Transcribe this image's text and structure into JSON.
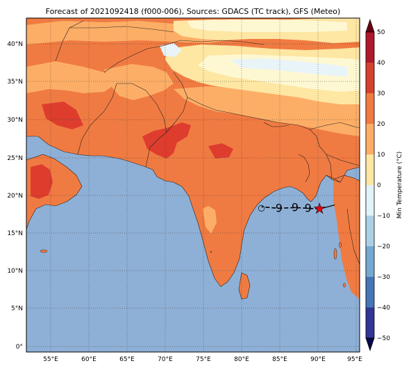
{
  "map": {
    "title": "Forecast of 2021092418 (f000-006), Sources: GDACS (TC track), GFS (Meteo)",
    "lon_ticks": [
      "55°E",
      "60°E",
      "65°E",
      "70°E",
      "75°E",
      "80°E",
      "85°E",
      "90°E",
      "95°E"
    ],
    "lat_ticks": [
      "0°",
      "5°N",
      "10°N",
      "15°N",
      "20°N",
      "25°N",
      "30°N",
      "35°N",
      "40°N"
    ],
    "colors": {
      "ocean": "#8fb0d6",
      "land_hot": "#f07b42",
      "land_very_hot": "#de3d2e",
      "land_warm": "#fdae66",
      "land_mild": "#fee6a3",
      "land_cool": "#fef8d2",
      "snow": "#e8f4f8",
      "storm_marker": "#e8000b"
    }
  },
  "track": {
    "current_position": {
      "lon": 90.2,
      "lat": 18.2
    },
    "forecast_points": [
      {
        "lon": 88.7,
        "lat": 18.3
      },
      {
        "lon": 87.0,
        "lat": 18.4
      },
      {
        "lon": 84.9,
        "lat": 18.3
      },
      {
        "lon": 82.6,
        "lat": 18.5
      }
    ]
  },
  "colorbar": {
    "label": "Min Temperature (°C)",
    "ticks": [
      "50",
      "40",
      "30",
      "20",
      "10",
      "0",
      "−10",
      "−20",
      "−30",
      "−40",
      "−50"
    ],
    "colors": [
      "#8b0016",
      "#b2182b",
      "#d6402e",
      "#f07b42",
      "#fdae66",
      "#fee6a3",
      "#e0f3f8",
      "#abd0e6",
      "#74a9cf",
      "#4575b4",
      "#313695",
      "#1a1a7a"
    ]
  }
}
